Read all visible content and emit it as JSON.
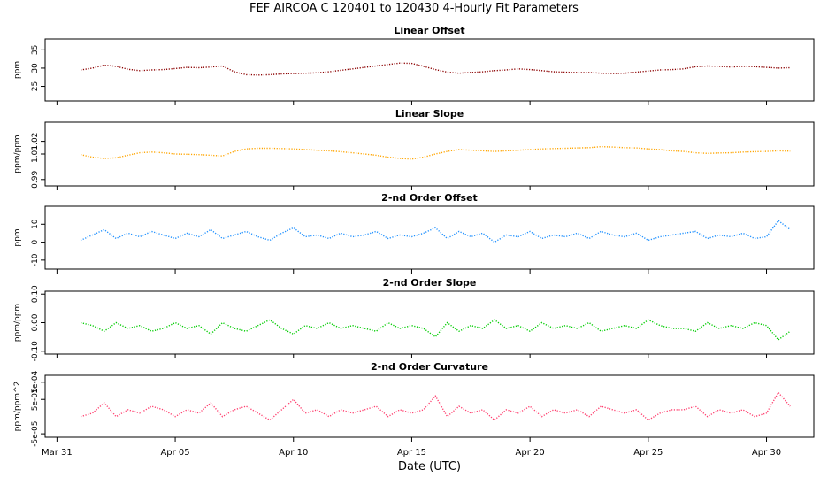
{
  "title": "FEF   AIRCOA C   120401 to 120430   4-Hourly Fit Parameters",
  "xlabel": "Date (UTC)",
  "x_ticks": [
    "Mar 31",
    "Apr 05",
    "Apr 10",
    "Apr 15",
    "Apr 20",
    "Apr 25",
    "Apr 30"
  ],
  "x_tick_days": [
    0,
    5,
    10,
    15,
    20,
    25,
    30
  ],
  "x_range_days": [
    -0.5,
    32
  ],
  "data_start_day": 1.0,
  "data_end_day": 31.0,
  "chart_data": [
    {
      "type": "line",
      "title": "Linear Offset",
      "ylabel": "ppm",
      "color": "#8b0000",
      "ylim": [
        21,
        38
      ],
      "yticks": [
        25,
        30,
        35
      ],
      "ytick_labels": [
        "25",
        "30",
        "35"
      ],
      "x_days": [
        1,
        1.5,
        2,
        2.5,
        3,
        3.5,
        4,
        4.5,
        5,
        5.5,
        6,
        6.5,
        7,
        7.5,
        8,
        8.5,
        9,
        9.5,
        10,
        10.5,
        11,
        11.5,
        12,
        12.5,
        13,
        13.5,
        14,
        14.5,
        15,
        15.5,
        16,
        16.5,
        17,
        17.5,
        18,
        18.5,
        19,
        19.5,
        20,
        20.5,
        21,
        21.5,
        22,
        22.5,
        23,
        23.5,
        24,
        24.5,
        25,
        25.5,
        26,
        26.5,
        27,
        27.5,
        28,
        28.5,
        29,
        29.5,
        30,
        30.5,
        31
      ],
      "values": [
        29.5,
        30.0,
        30.8,
        30.5,
        29.7,
        29.3,
        29.5,
        29.6,
        29.9,
        30.2,
        30.1,
        30.3,
        30.6,
        29.0,
        28.2,
        28.1,
        28.2,
        28.4,
        28.5,
        28.6,
        28.7,
        29.0,
        29.4,
        29.8,
        30.2,
        30.6,
        31.0,
        31.4,
        31.3,
        30.5,
        29.6,
        28.9,
        28.6,
        28.8,
        29.0,
        29.3,
        29.5,
        29.8,
        29.6,
        29.3,
        29.0,
        28.9,
        28.8,
        28.8,
        28.6,
        28.5,
        28.6,
        28.9,
        29.2,
        29.5,
        29.6,
        29.8,
        30.4,
        30.6,
        30.5,
        30.3,
        30.5,
        30.4,
        30.2,
        30.0,
        30.1
      ]
    },
    {
      "type": "line",
      "title": "Linear Slope",
      "ylabel": "ppm/ppm",
      "color": "#ffa500",
      "ylim": [
        0.985,
        1.035
      ],
      "yticks": [
        0.99,
        1.01,
        1.02
      ],
      "ytick_labels": [
        "0.99",
        "1.01",
        "1.02"
      ],
      "x_days": [
        1,
        1.5,
        2,
        2.5,
        3,
        3.5,
        4,
        4.5,
        5,
        5.5,
        6,
        6.5,
        7,
        7.5,
        8,
        8.5,
        9,
        9.5,
        10,
        10.5,
        11,
        11.5,
        12,
        12.5,
        13,
        13.5,
        14,
        14.5,
        15,
        15.5,
        16,
        16.5,
        17,
        17.5,
        18,
        18.5,
        19,
        19.5,
        20,
        20.5,
        21,
        21.5,
        22,
        22.5,
        23,
        23.5,
        24,
        24.5,
        25,
        25.5,
        26,
        26.5,
        27,
        27.5,
        28,
        28.5,
        29,
        29.5,
        30,
        30.5,
        31
      ],
      "values": [
        1.0095,
        1.0075,
        1.0065,
        1.007,
        1.009,
        1.011,
        1.0115,
        1.011,
        1.01,
        1.0098,
        1.0095,
        1.009,
        1.0085,
        1.012,
        1.014,
        1.0145,
        1.0145,
        1.0143,
        1.014,
        1.0135,
        1.013,
        1.0125,
        1.0118,
        1.011,
        1.01,
        1.009,
        1.0075,
        1.0065,
        1.006,
        1.0075,
        1.01,
        1.012,
        1.0135,
        1.013,
        1.0125,
        1.012,
        1.0125,
        1.013,
        1.0135,
        1.014,
        1.0143,
        1.0145,
        1.0148,
        1.015,
        1.0158,
        1.0155,
        1.015,
        1.0148,
        1.014,
        1.0135,
        1.0125,
        1.012,
        1.011,
        1.0105,
        1.0108,
        1.011,
        1.0115,
        1.0118,
        1.012,
        1.0125,
        1.0122
      ]
    },
    {
      "type": "line",
      "title": "2-nd Order Offset",
      "ylabel": "ppm",
      "color": "#1e90ff",
      "ylim": [
        -15,
        20
      ],
      "yticks": [
        -10,
        0,
        10
      ],
      "ytick_labels": [
        "-10",
        "0",
        "10"
      ],
      "x_days": [
        1,
        1.5,
        2,
        2.5,
        3,
        3.5,
        4,
        4.5,
        5,
        5.5,
        6,
        6.5,
        7,
        7.5,
        8,
        8.5,
        9,
        9.5,
        10,
        10.5,
        11,
        11.5,
        12,
        12.5,
        13,
        13.5,
        14,
        14.5,
        15,
        15.5,
        16,
        16.5,
        17,
        17.5,
        18,
        18.5,
        19,
        19.5,
        20,
        20.5,
        21,
        21.5,
        22,
        22.5,
        23,
        23.5,
        24,
        24.5,
        25,
        25.5,
        26,
        26.5,
        27,
        27.5,
        28,
        28.5,
        29,
        29.5,
        30,
        30.5,
        31
      ],
      "values": [
        1,
        4,
        7,
        2,
        5,
        3,
        6,
        4,
        2,
        5,
        3,
        7,
        2,
        4,
        6,
        3,
        1,
        5,
        8,
        3,
        4,
        2,
        5,
        3,
        4,
        6,
        2,
        4,
        3,
        5,
        8,
        2,
        6,
        3,
        5,
        0,
        4,
        3,
        6,
        2,
        4,
        3,
        5,
        2,
        6,
        4,
        3,
        5,
        1,
        3,
        4,
        5,
        6,
        2,
        4,
        3,
        5,
        2,
        3,
        12,
        7
      ]
    },
    {
      "type": "line",
      "title": "2-nd Order Slope",
      "ylabel": "ppm/ppm",
      "color": "#00cd00",
      "ylim": [
        -0.11,
        0.11
      ],
      "yticks": [
        -0.1,
        0.0,
        0.1
      ],
      "ytick_labels": [
        "-0.10",
        "0.00",
        "0.10"
      ],
      "x_days": [
        1,
        1.5,
        2,
        2.5,
        3,
        3.5,
        4,
        4.5,
        5,
        5.5,
        6,
        6.5,
        7,
        7.5,
        8,
        8.5,
        9,
        9.5,
        10,
        10.5,
        11,
        11.5,
        12,
        12.5,
        13,
        13.5,
        14,
        14.5,
        15,
        15.5,
        16,
        16.5,
        17,
        17.5,
        18,
        18.5,
        19,
        19.5,
        20,
        20.5,
        21,
        21.5,
        22,
        22.5,
        23,
        23.5,
        24,
        24.5,
        25,
        25.5,
        26,
        26.5,
        27,
        27.5,
        28,
        28.5,
        29,
        29.5,
        30,
        30.5,
        31
      ],
      "values": [
        0.0,
        -0.01,
        -0.03,
        0.0,
        -0.02,
        -0.01,
        -0.03,
        -0.02,
        0.0,
        -0.02,
        -0.01,
        -0.04,
        0.0,
        -0.02,
        -0.03,
        -0.01,
        0.01,
        -0.02,
        -0.04,
        -0.01,
        -0.02,
        0.0,
        -0.02,
        -0.01,
        -0.02,
        -0.03,
        0.0,
        -0.02,
        -0.01,
        -0.02,
        -0.05,
        0.0,
        -0.03,
        -0.01,
        -0.02,
        0.01,
        -0.02,
        -0.01,
        -0.03,
        0.0,
        -0.02,
        -0.01,
        -0.02,
        0.0,
        -0.03,
        -0.02,
        -0.01,
        -0.02,
        0.01,
        -0.01,
        -0.02,
        -0.02,
        -0.03,
        0.0,
        -0.02,
        -0.01,
        -0.02,
        0.0,
        -0.01,
        -0.06,
        -0.03
      ]
    },
    {
      "type": "line",
      "title": "2-nd Order Curvature",
      "ylabel": "ppm/ppm^2",
      "color": "#ff3e6e",
      "ylim": [
        -6e-05,
        0.00012
      ],
      "yticks": [
        -5e-05,
        5e-05,
        0.0001
      ],
      "ytick_labels": [
        "-5e-05",
        "5e-05",
        "1e-04"
      ],
      "x_days": [
        1,
        1.5,
        2,
        2.5,
        3,
        3.5,
        4,
        4.5,
        5,
        5.5,
        6,
        6.5,
        7,
        7.5,
        8,
        8.5,
        9,
        9.5,
        10,
        10.5,
        11,
        11.5,
        12,
        12.5,
        13,
        13.5,
        14,
        14.5,
        15,
        15.5,
        16,
        16.5,
        17,
        17.5,
        18,
        18.5,
        19,
        19.5,
        20,
        20.5,
        21,
        21.5,
        22,
        22.5,
        23,
        23.5,
        24,
        24.5,
        25,
        25.5,
        26,
        26.5,
        27,
        27.5,
        28,
        28.5,
        29,
        29.5,
        30,
        30.5,
        31
      ],
      "values": [
        0.0,
        1e-05,
        4e-05,
        0.0,
        2e-05,
        1e-05,
        3e-05,
        2e-05,
        0.0,
        2e-05,
        1e-05,
        4e-05,
        0.0,
        2e-05,
        3e-05,
        1e-05,
        -1e-05,
        2e-05,
        5e-05,
        1e-05,
        2e-05,
        0.0,
        2e-05,
        1e-05,
        2e-05,
        3e-05,
        0.0,
        2e-05,
        1e-05,
        2e-05,
        6e-05,
        0.0,
        3e-05,
        1e-05,
        2e-05,
        -1e-05,
        2e-05,
        1e-05,
        3e-05,
        0.0,
        2e-05,
        1e-05,
        2e-05,
        0.0,
        3e-05,
        2e-05,
        1e-05,
        2e-05,
        -1e-05,
        1e-05,
        2e-05,
        2e-05,
        3e-05,
        0.0,
        2e-05,
        1e-05,
        2e-05,
        0.0,
        1e-05,
        7e-05,
        3e-05
      ]
    }
  ]
}
